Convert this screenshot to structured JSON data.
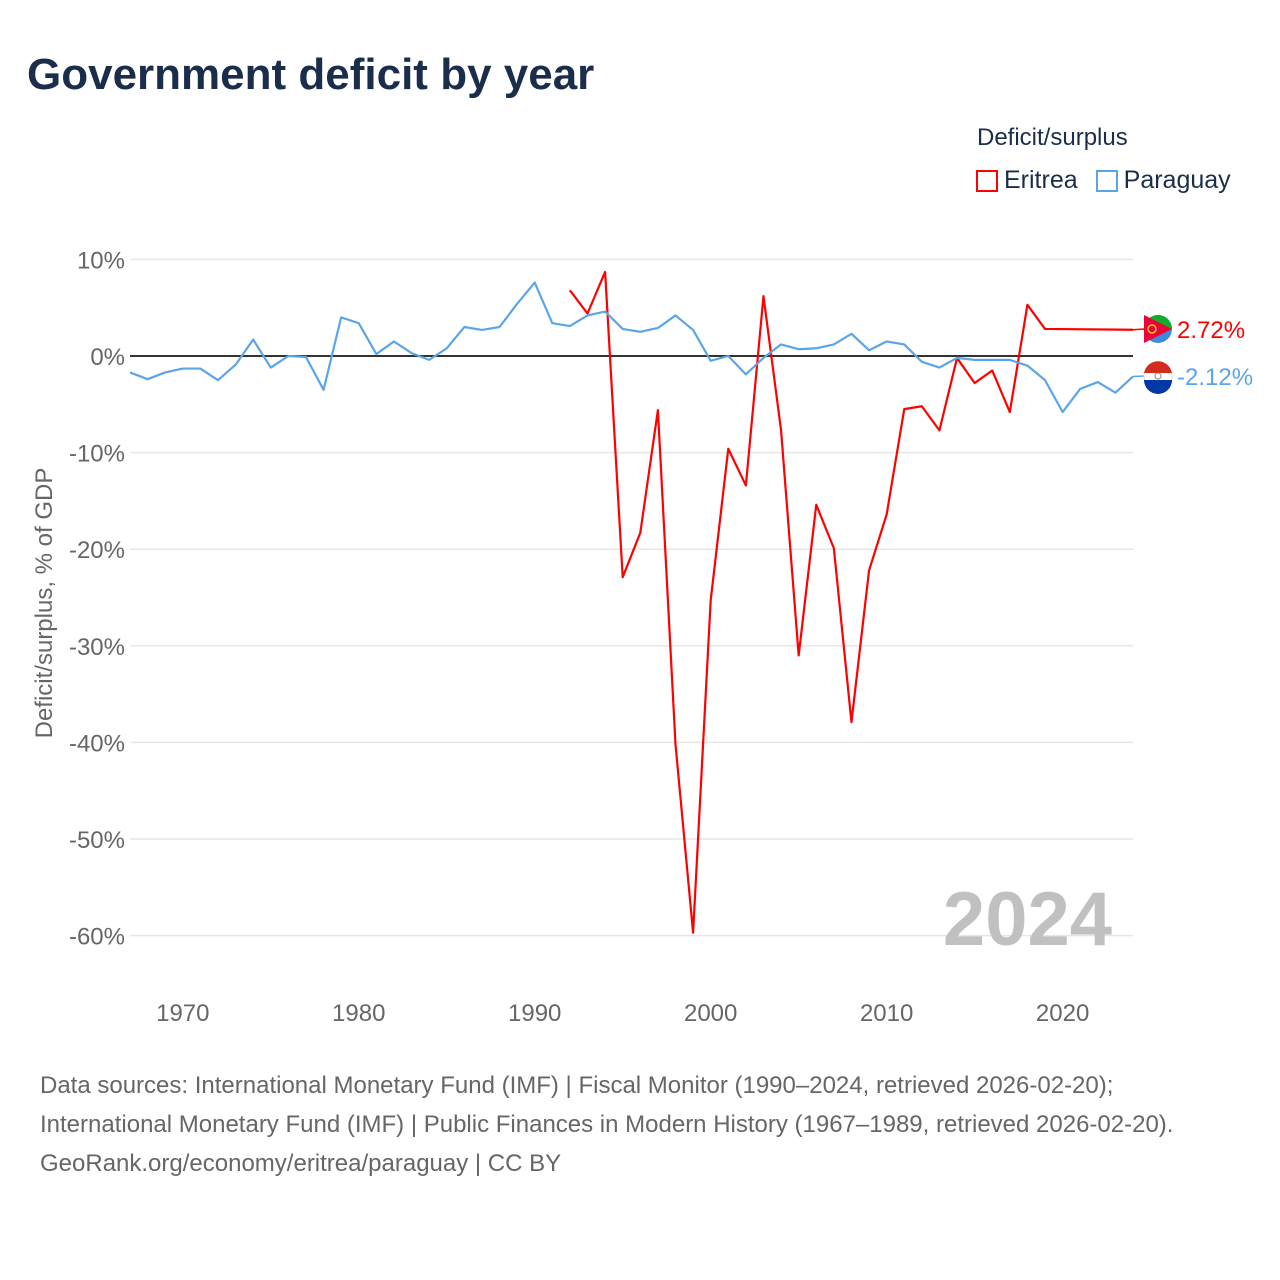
{
  "title": "Government deficit by year",
  "legend": {
    "title": "Deficit/surplus",
    "items": [
      {
        "label": "Eritrea",
        "color": "#ff0000"
      },
      {
        "label": "Paraguay",
        "color": "#5aa5ea"
      }
    ]
  },
  "chart_data": {
    "type": "line",
    "title": "Government deficit by year",
    "xlabel": "",
    "ylabel": "Deficit/surplus, % of GDP",
    "xlim": [
      1967,
      2024
    ],
    "ylim": [
      -60,
      10
    ],
    "xticks": [
      1970,
      1980,
      1990,
      2000,
      2010,
      2020
    ],
    "yticks": [
      10,
      0,
      -10,
      -20,
      -30,
      -40,
      -50,
      -60
    ],
    "ytick_labels": [
      "10%",
      "0%",
      "-10%",
      "-20%",
      "-30%",
      "-40%",
      "-50%",
      "-60%"
    ],
    "year_watermark": "2024",
    "series": [
      {
        "name": "Eritrea",
        "color": "#ff0000",
        "end_label": "2.72%",
        "x": [
          1992,
          1993,
          1994,
          1995,
          1996,
          1997,
          1998,
          1999,
          2000,
          2001,
          2002,
          2003,
          2004,
          2005,
          2006,
          2007,
          2008,
          2009,
          2010,
          2011,
          2012,
          2013,
          2014,
          2015,
          2016,
          2017,
          2018,
          2019,
          2024
        ],
        "y": [
          6.8,
          4.4,
          8.7,
          -22.9,
          -18.3,
          -5.6,
          -40.2,
          -59.7,
          -25.3,
          -9.6,
          -13.4,
          6.2,
          -7.7,
          -31.0,
          -15.4,
          -19.9,
          -37.9,
          -22.2,
          -16.4,
          -5.5,
          -5.2,
          -7.7,
          -0.2,
          -2.8,
          -1.5,
          -5.8,
          5.3,
          2.8,
          2.72
        ]
      },
      {
        "name": "Paraguay",
        "color": "#5aa5ea",
        "end_label": "-2.12%",
        "x": [
          1967,
          1968,
          1969,
          1970,
          1971,
          1972,
          1973,
          1974,
          1975,
          1976,
          1977,
          1978,
          1979,
          1980,
          1981,
          1982,
          1983,
          1984,
          1985,
          1986,
          1987,
          1988,
          1989,
          1990,
          1991,
          1992,
          1993,
          1994,
          1995,
          1996,
          1997,
          1998,
          1999,
          2000,
          2001,
          2002,
          2003,
          2004,
          2005,
          2006,
          2007,
          2008,
          2009,
          2010,
          2011,
          2012,
          2013,
          2014,
          2015,
          2016,
          2017,
          2018,
          2019,
          2020,
          2021,
          2022,
          2023,
          2024
        ],
        "y": [
          -1.7,
          -2.4,
          -1.7,
          -1.3,
          -1.3,
          -2.5,
          -0.9,
          1.7,
          -1.2,
          0,
          -0.1,
          -3.5,
          4.0,
          3.4,
          0.2,
          1.5,
          0.3,
          -0.4,
          0.8,
          3.0,
          2.7,
          3.0,
          5.4,
          7.6,
          3.4,
          3.1,
          4.2,
          4.6,
          2.8,
          2.5,
          2.9,
          4.2,
          2.7,
          -0.5,
          0,
          -1.9,
          -0.2,
          1.2,
          0.7,
          0.8,
          1.2,
          2.3,
          0.6,
          1.5,
          1.2,
          -0.6,
          -1.2,
          -0.2,
          -0.4,
          -0.4,
          -0.4,
          -1.0,
          -2.5,
          -5.8,
          -3.4,
          -2.7,
          -3.8,
          -2.12
        ]
      }
    ]
  },
  "footer": {
    "sources": "Data sources: International Monetary Fund (IMF) | Fiscal Monitor (1990–2024, retrieved 2026-02-20); International Monetary Fund (IMF) | Public Finances in Modern History (1967–1989, retrieved 2026-02-20).",
    "credit": "GeoRank.org/economy/eritrea/paraguay | CC BY"
  }
}
